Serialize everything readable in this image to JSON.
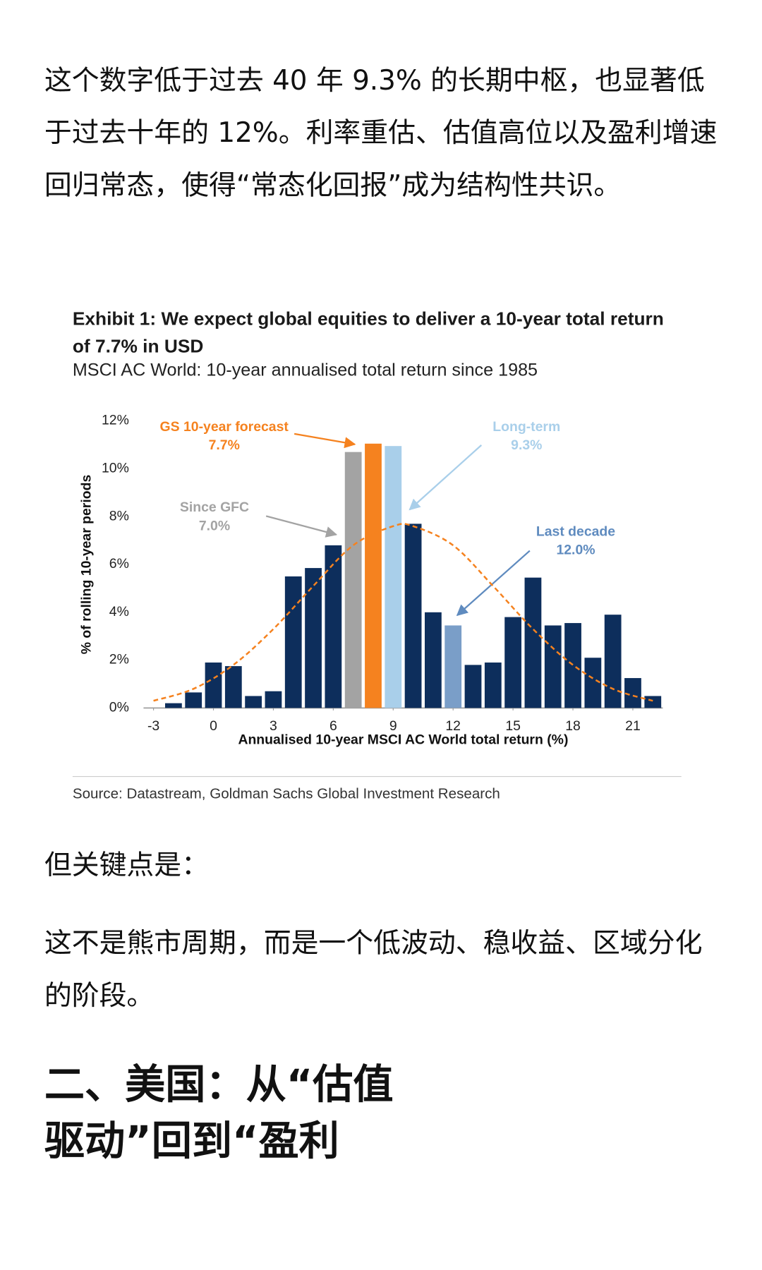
{
  "paragraphs": [
    "这个数字低于过去 40 年 9.3% 的长期中枢，也显著低于过去十年的 12%。利率重估、估值高位以及盈利增速回归常态，使得“常态化回报”成为结构性共识。",
    "但关键点是：",
    "这不是熊市周期，而是一个低波动、稳收益、区域分化的阶段。"
  ],
  "heading": "二、美国：从“估值驱动”回到“盈利",
  "chart_data": {
    "type": "bar",
    "title": "Exhibit 1: We expect global equities to deliver a 10-year total return of 7.7% in USD",
    "subtitle": "MSCI AC World: 10-year annualised total return since 1985",
    "source": "Source: Datastream, Goldman Sachs Global Investment Research",
    "x_label": "Annualised 10-year MSCI AC World total return (%)",
    "y_label": "% of rolling 10-year periods",
    "x": [
      -2,
      -1,
      0,
      1,
      2,
      3,
      4,
      5,
      6,
      7,
      8,
      9,
      10,
      11,
      12,
      13,
      14,
      15,
      16,
      17,
      18,
      19,
      20,
      21,
      22
    ],
    "values": [
      0.2,
      0.65,
      1.9,
      1.75,
      0.5,
      0.7,
      5.5,
      5.85,
      6.8,
      10.7,
      11.05,
      10.95,
      7.7,
      4.0,
      3.45,
      1.8,
      1.9,
      3.8,
      5.45,
      3.45,
      3.55,
      2.1,
      3.9,
      1.25,
      0.5
    ],
    "colors": [
      "#0d2e5c",
      "#0d2e5c",
      "#0d2e5c",
      "#0d2e5c",
      "#0d2e5c",
      "#0d2e5c",
      "#0d2e5c",
      "#0d2e5c",
      "#0d2e5c",
      "#a3a3a3",
      "#f5821f",
      "#a9cfea",
      "#0d2e5c",
      "#0d2e5c",
      "#7a9ec8",
      "#0d2e5c",
      "#0d2e5c",
      "#0d2e5c",
      "#0d2e5c",
      "#0d2e5c",
      "#0d2e5c",
      "#0d2e5c",
      "#0d2e5c",
      "#0d2e5c",
      "#0d2e5c"
    ],
    "curve": {
      "x": [
        -3,
        -1,
        1,
        3,
        5,
        7,
        9,
        10,
        12,
        14,
        16,
        18,
        20,
        22
      ],
      "values": [
        0.3,
        0.8,
        1.8,
        3.3,
        5.1,
        6.8,
        7.6,
        7.6,
        6.8,
        5.1,
        3.3,
        1.8,
        0.8,
        0.3
      ],
      "color": "#f5821f",
      "dashed": true
    },
    "annotations": [
      {
        "label": "GS 10-year forecast",
        "value_label": "7.7%",
        "color": "#f5821f"
      },
      {
        "label": "Long-term",
        "value_label": "9.3%",
        "color": "#a9cfea"
      },
      {
        "label": "Since GFC",
        "value_label": "7.0%",
        "color": "#a3a3a3"
      },
      {
        "label": "Last decade",
        "value_label": "12.0%",
        "color": "#5f8bbf"
      }
    ],
    "xlim": [
      -3.5,
      22.5
    ],
    "xticks": [
      -3,
      0,
      3,
      6,
      9,
      12,
      15,
      18,
      21
    ],
    "ylim": [
      0,
      12
    ],
    "yticks": [
      {
        "value": 0,
        "label": "0%"
      },
      {
        "value": 2,
        "label": "2%"
      },
      {
        "value": 4,
        "label": "4%"
      },
      {
        "value": 6,
        "label": "6%"
      },
      {
        "value": 8,
        "label": "8%"
      },
      {
        "value": 10,
        "label": "10%"
      },
      {
        "value": 12,
        "label": "12%"
      }
    ]
  }
}
